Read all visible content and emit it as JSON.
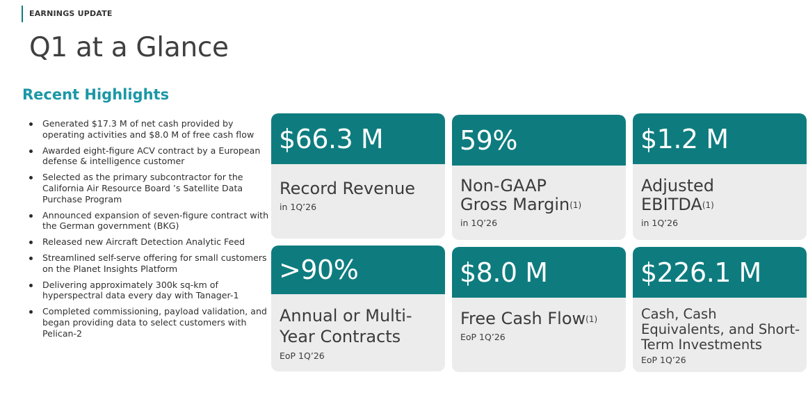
{
  "header": {
    "eyebrow": "EARNINGS UPDATE",
    "title": "Q1 at a Glance"
  },
  "highlights": {
    "heading": "Recent Highlights",
    "items": [
      "Generated $17.3 M of net cash provided by operating activities and $8.0 M of free cash flow",
      "Awarded eight-figure ACV contract by a European defense & intelligence customer",
      "Selected as the primary subcontractor for the California Air Resource Board ’s Satellite Data Purchase Program",
      "Announced expansion of seven-figure contract with the German government (BKG)",
      "Released new Aircraft Detection Analytic Feed",
      "Streamlined self-serve offering for small customers on the Planet Insights Platform",
      "Delivering approximately 300k sq-km of hyperspectral data every day with Tanager-1",
      "Completed commissioning, payload validation, and began providing data to select customers with Pelican-2"
    ]
  },
  "metrics": [
    {
      "value": "$66.3 M",
      "label": "Record Revenue",
      "note": "",
      "sub": "in  1Q’26"
    },
    {
      "value": "59%",
      "label": "Non-GAAP Gross Margin",
      "note": "(1)",
      "sub": "in  1Q’26"
    },
    {
      "value": "$1.2 M",
      "label": "Adjusted EBITDA",
      "note": "(1)",
      "sub": "in  1Q’26"
    },
    {
      "value": ">90%",
      "label": "Annual or Multi-Year Contracts",
      "note": "",
      "sub": "EoP 1Q’26"
    },
    {
      "value": "$8.0 M",
      "label": "Free Cash Flow",
      "note": "(1)",
      "sub": "EoP 1Q’26"
    },
    {
      "value": "$226.1 M",
      "label": "Cash, Cash Equivalents, and Short-Term Investments",
      "note": "",
      "sub": "EoP 1Q’26"
    }
  ],
  "colors": {
    "accent": "#0e7c7f",
    "heading": "#1b97a6",
    "card_bg": "#ececec"
  }
}
